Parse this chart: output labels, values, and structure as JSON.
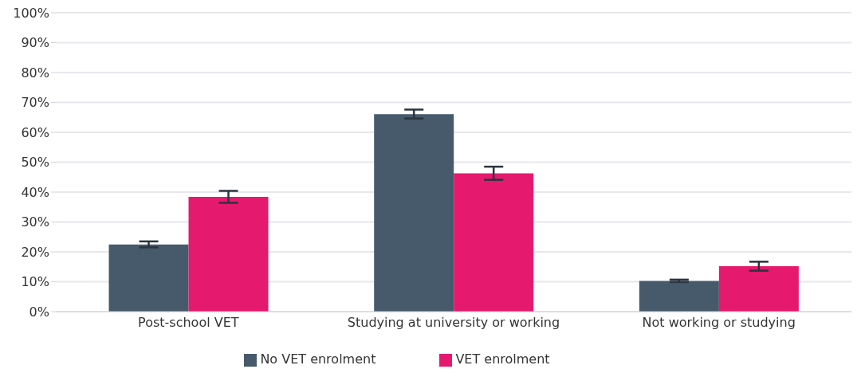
{
  "chart_data": {
    "type": "bar",
    "categories": [
      "Post-school VET",
      "Studying at university or working",
      "Not working or studying"
    ],
    "series": [
      {
        "name": "No VET enrolment",
        "color": "#475a6b",
        "values": [
          22.5,
          66.1,
          10.3
        ],
        "errors": [
          1.0,
          1.5,
          0.4
        ]
      },
      {
        "name": "VET enrolment",
        "color": "#e5196e",
        "values": [
          38.4,
          46.3,
          15.2
        ],
        "errors": [
          2.0,
          2.2,
          1.5
        ]
      }
    ],
    "ylim": [
      0,
      100
    ],
    "yticks": [
      {
        "value": 0,
        "label": "0%"
      },
      {
        "value": 10,
        "label": "10%"
      },
      {
        "value": 20,
        "label": "20%"
      },
      {
        "value": 30,
        "label": "30%"
      },
      {
        "value": 40,
        "label": "40%"
      },
      {
        "value": 50,
        "label": "50%"
      },
      {
        "value": 60,
        "label": "60%"
      },
      {
        "value": 70,
        "label": "70%"
      },
      {
        "value": 80,
        "label": "80%"
      },
      {
        "value": 90,
        "label": "90%"
      },
      {
        "value": 100,
        "label": "100%"
      }
    ],
    "grid": "y",
    "legend": "bottom"
  }
}
